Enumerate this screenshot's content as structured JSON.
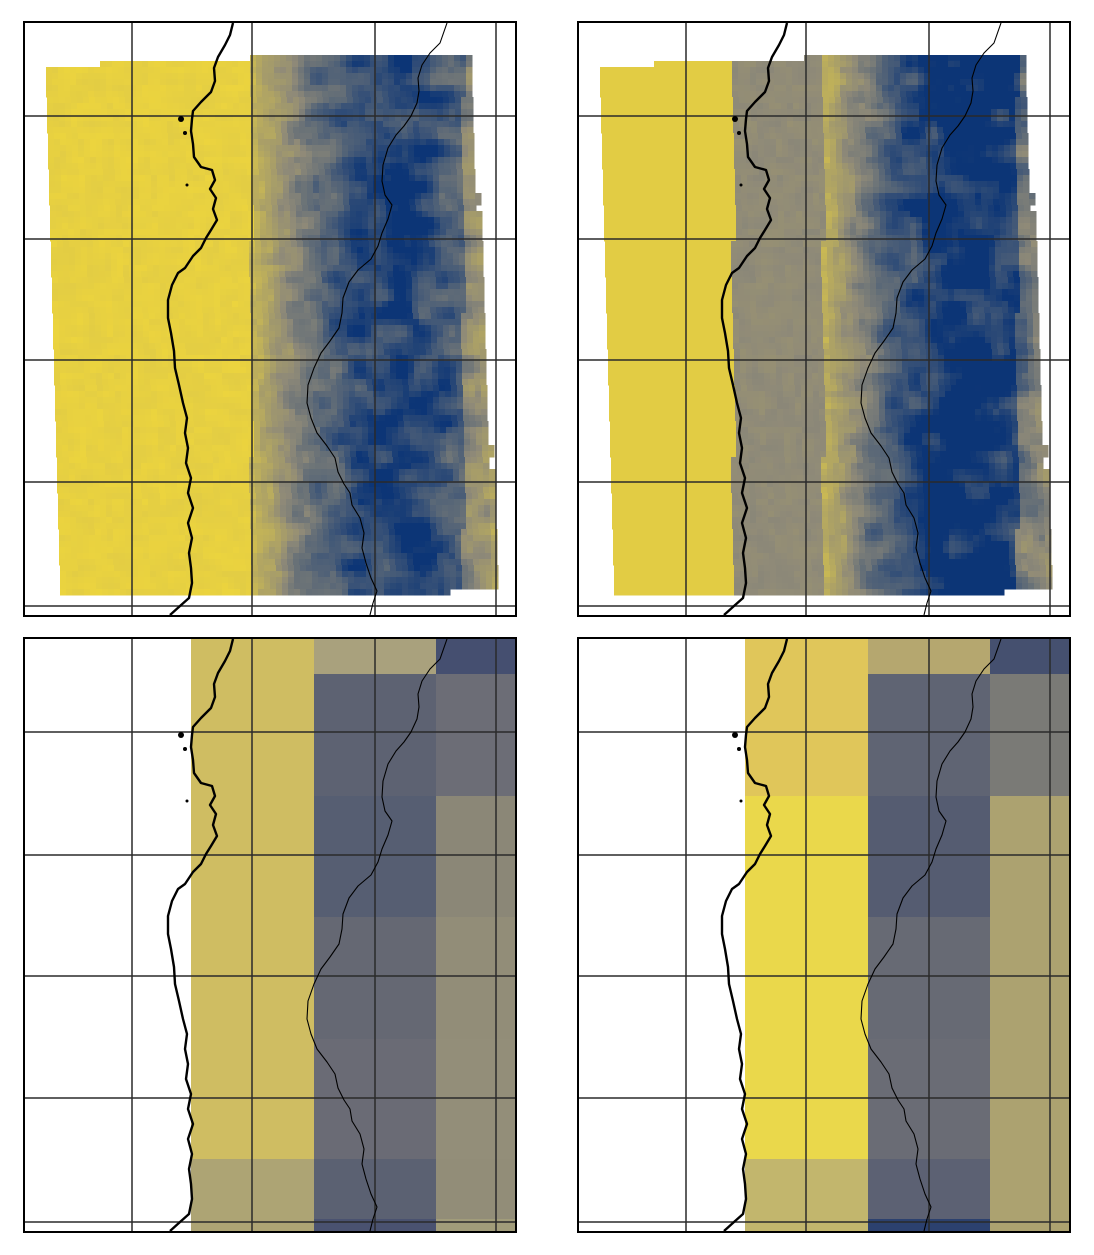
{
  "figure": {
    "panels": [
      {
        "id": "hires-a",
        "kind": "fine",
        "palette": "cividis",
        "variant": "a"
      },
      {
        "id": "hires-b",
        "kind": "fine",
        "palette": "cividis",
        "variant": "b"
      },
      {
        "id": "coarse-a",
        "kind": "coarse",
        "palette": "cividis",
        "cells": [
          [
            "#cfbd62",
            "#cfbd62",
            "#a9a17d",
            "#a9a17d",
            "#454f70",
            "#454f70"
          ],
          [
            "#cfbd62",
            "#cfbd62",
            "#5d6272",
            "#5d6272",
            "#6c6d76",
            "#6c6d76"
          ],
          [
            "#cfbd62",
            "#cfbd62",
            "#565e72",
            "#565e72",
            "#8b8777",
            "#8b8777"
          ],
          [
            "#cfbd62",
            "#cfbd62",
            "#656873",
            "#656873",
            "#928d78",
            "#928d78"
          ],
          [
            "#cfbd62",
            "#cfbd62",
            "#6a6b75",
            "#6a6b75",
            "#938e79",
            "#938e79"
          ],
          [
            "#ada474",
            "#ada474",
            "#5b6172",
            "#5b6172",
            "#928d78",
            "#928d78"
          ],
          [
            "#ada474",
            "#ada474",
            "#4a5270",
            "#4a5270",
            "#a19c7a",
            "#a19c7a"
          ]
        ]
      },
      {
        "id": "coarse-b",
        "kind": "coarse",
        "palette": "cividis",
        "cells": [
          [
            "#e0c65a",
            "#e0c65a",
            "#b5a76f",
            "#b5a76f",
            "#45506f",
            "#45506f"
          ],
          [
            "#e0c65a",
            "#e0c65a",
            "#5f6473",
            "#5f6473",
            "#7a7a76",
            "#7a7a76"
          ],
          [
            "#ead84b",
            "#ead84b",
            "#555c71",
            "#555c71",
            "#aca270",
            "#aca270"
          ],
          [
            "#ead84b",
            "#ead84b",
            "#676a74",
            "#676a74",
            "#aca270",
            "#aca270"
          ],
          [
            "#ead84b",
            "#ead84b",
            "#6a6c75",
            "#6a6c75",
            "#aca270",
            "#aca270"
          ],
          [
            "#c2b66d",
            "#c2b66d",
            "#5c6173",
            "#5c6173",
            "#aca270",
            "#aca270"
          ],
          [
            "#c2b66d",
            "#c2b66d",
            "#2c416f",
            "#2c416f",
            "#aca270",
            "#aca270"
          ]
        ]
      }
    ],
    "colors": {
      "high": "#f2d93a",
      "mid": "#8f8a78",
      "low": "#0c3576",
      "grid": "#2a2a2a",
      "coast": "#000000",
      "frame": "#000000"
    }
  }
}
